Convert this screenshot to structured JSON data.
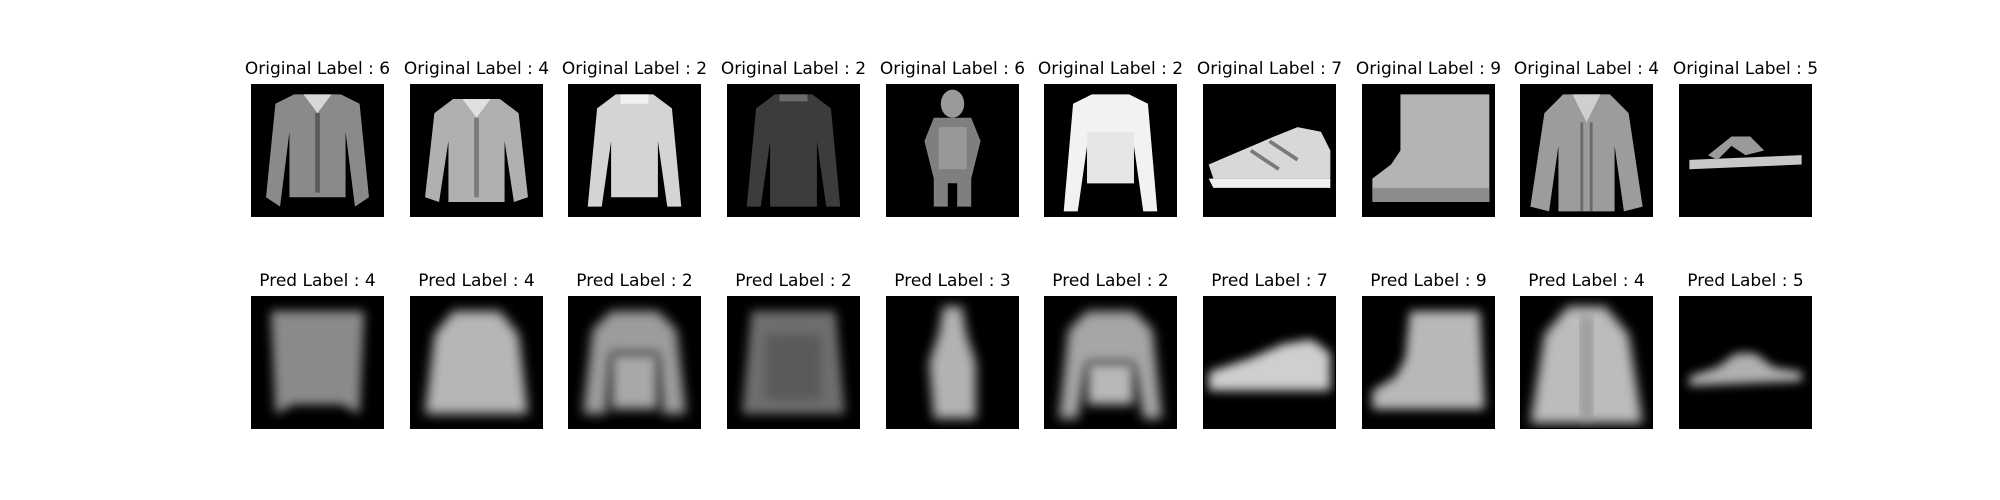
{
  "figure": {
    "original_row": [
      {
        "title": "Original Label : 6",
        "icon": "shirt-icon"
      },
      {
        "title": "Original Label : 4",
        "icon": "coat-icon"
      },
      {
        "title": "Original Label : 2",
        "icon": "pullover-icon"
      },
      {
        "title": "Original Label : 2",
        "icon": "pullover-dark-icon"
      },
      {
        "title": "Original Label : 6",
        "icon": "shirt-person-icon"
      },
      {
        "title": "Original Label : 2",
        "icon": "pullover-icon"
      },
      {
        "title": "Original Label : 7",
        "icon": "sneaker-icon"
      },
      {
        "title": "Original Label : 9",
        "icon": "ankle-boot-icon"
      },
      {
        "title": "Original Label : 4",
        "icon": "coat-icon"
      },
      {
        "title": "Original Label : 5",
        "icon": "sandal-icon"
      }
    ],
    "pred_row": [
      {
        "title": "Pred Label : 4",
        "icon": "blurry-top-icon"
      },
      {
        "title": "Pred Label : 4",
        "icon": "blurry-coat-icon"
      },
      {
        "title": "Pred Label : 2",
        "icon": "blurry-pullover-icon"
      },
      {
        "title": "Pred Label : 2",
        "icon": "blurry-pullover-icon"
      },
      {
        "title": "Pred Label : 3",
        "icon": "blurry-dress-icon"
      },
      {
        "title": "Pred Label : 2",
        "icon": "blurry-pullover-icon"
      },
      {
        "title": "Pred Label : 7",
        "icon": "blurry-sneaker-icon"
      },
      {
        "title": "Pred Label : 9",
        "icon": "blurry-boot-icon"
      },
      {
        "title": "Pred Label : 4",
        "icon": "blurry-coat-icon"
      },
      {
        "title": "Pred Label : 5",
        "icon": "blurry-sandal-icon"
      }
    ]
  }
}
